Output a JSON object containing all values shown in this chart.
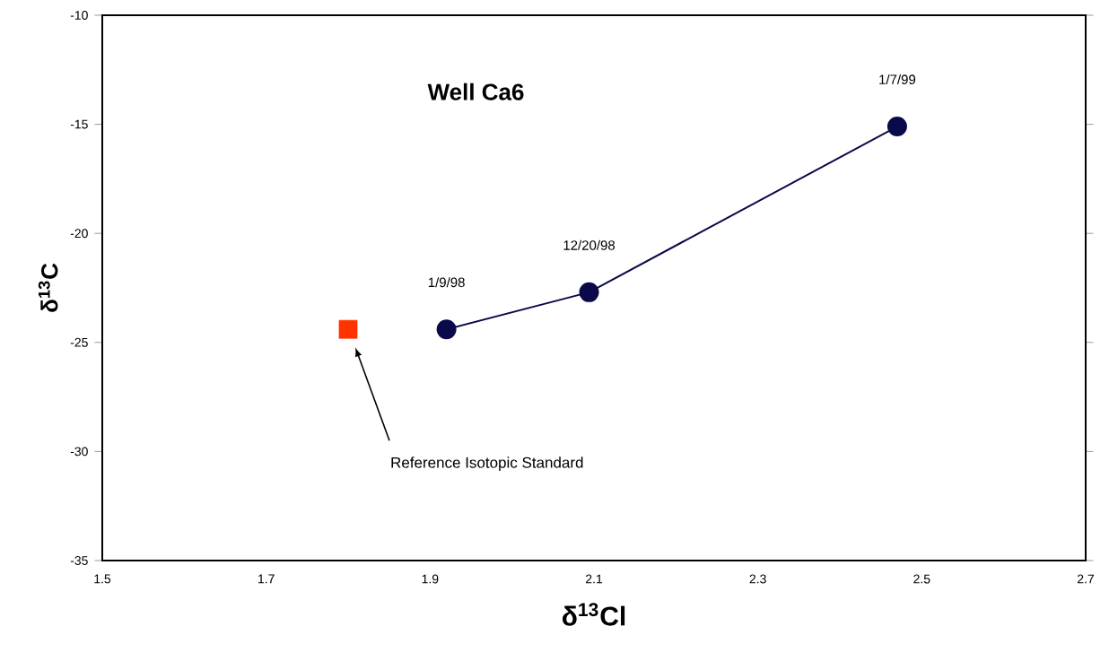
{
  "chart_data": {
    "type": "line",
    "title": "Well Ca6",
    "xlabel": "δ$^{13}$Cl",
    "ylabel": "δ$^{13}$C",
    "xlim": [
      1.5,
      2.7
    ],
    "xticks": [
      1.5,
      1.7,
      1.9,
      2.1,
      2.3,
      2.5,
      2.7
    ],
    "ylim": [
      -35,
      -10
    ],
    "yticks": [
      -35,
      -30,
      -25,
      -20,
      -15,
      -10
    ],
    "grid": false,
    "series": [
      {
        "color": "#0a0a4a",
        "marker": "circle",
        "line_style": "solid",
        "x": [
          1.92,
          2.094,
          2.47
        ],
        "values": [
          -24.4,
          -22.7,
          -15.1
        ]
      },
      {
        "type": "scatter",
        "color": "#ff3300",
        "marker": "square",
        "x": [
          1.8
        ],
        "values": [
          -24.4
        ]
      }
    ],
    "annotations": [
      "1/9/98",
      "12/20/98",
      "1/7/99",
      "Reference Isotopic Standard"
    ]
  }
}
